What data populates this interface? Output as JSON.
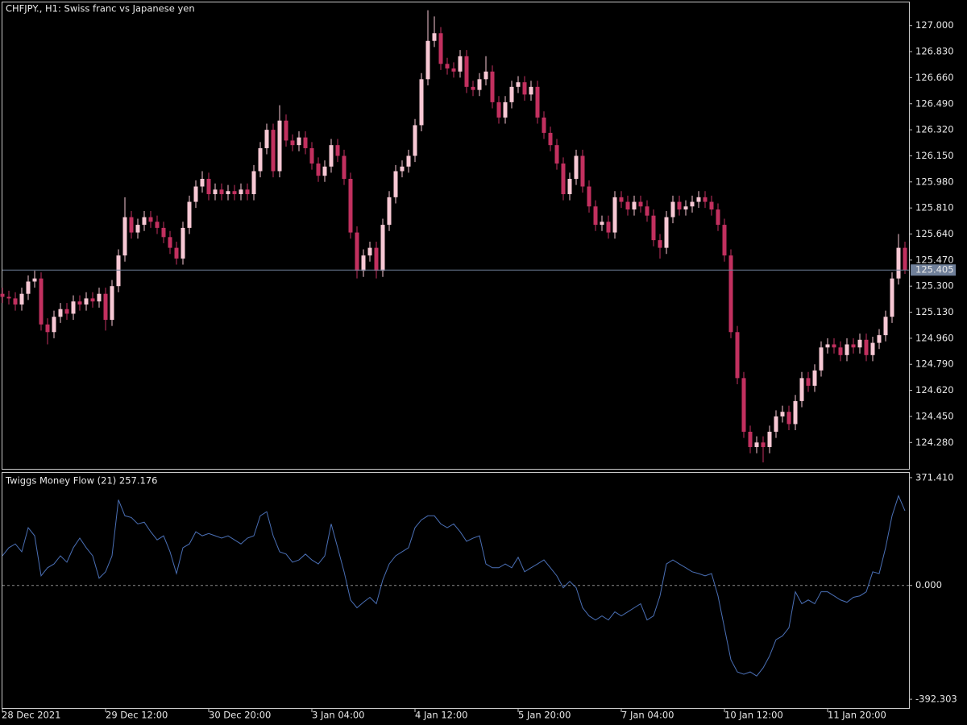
{
  "chart_data": [
    {
      "type": "candlestick",
      "title": "CHFJPY., H1:  Swiss franc vs Japanese yen",
      "categories": [
        "28 Dec 2021",
        null,
        null,
        null,
        null,
        null,
        null,
        null,
        null,
        null,
        null,
        null,
        null,
        null,
        null,
        null,
        "29 Dec 12:00",
        null,
        null,
        null,
        null,
        null,
        null,
        null,
        null,
        null,
        null,
        null,
        null,
        null,
        null,
        null,
        "30 Dec 20:00",
        null,
        null,
        null,
        null,
        null,
        null,
        null,
        null,
        null,
        null,
        null,
        null,
        null,
        null,
        null,
        "3 Jan 04:00",
        null,
        null,
        null,
        null,
        null,
        null,
        null,
        null,
        null,
        null,
        null,
        null,
        null,
        null,
        null,
        "4 Jan 12:00",
        null,
        null,
        null,
        null,
        null,
        null,
        null,
        null,
        null,
        null,
        null,
        null,
        null,
        null,
        null,
        "5 Jan 20:00",
        null,
        null,
        null,
        null,
        null,
        null,
        null,
        null,
        null,
        null,
        null,
        null,
        null,
        null,
        null,
        "7 Jan 04:00",
        null,
        null,
        null,
        null,
        null,
        null,
        null,
        null,
        null,
        null,
        null,
        null,
        null,
        null,
        null,
        "10 Jan 12:00",
        null,
        null,
        null,
        null,
        null,
        null,
        null,
        null,
        null,
        null,
        null,
        null,
        null,
        null,
        null,
        "11 Jan 20:00",
        null,
        null,
        null,
        null,
        null,
        null,
        null,
        null,
        null,
        null,
        null,
        null
      ],
      "ohlc": [
        [
          125.25,
          125.29,
          125.19,
          125.23
        ],
        [
          125.23,
          125.27,
          125.18,
          125.22
        ],
        [
          125.22,
          125.26,
          125.14,
          125.18
        ],
        [
          125.18,
          125.29,
          125.14,
          125.25
        ],
        [
          125.25,
          125.37,
          125.21,
          125.33
        ],
        [
          125.33,
          125.4,
          125.29,
          125.35
        ],
        [
          125.35,
          125.39,
          125.01,
          125.05
        ],
        [
          125.05,
          125.09,
          124.92,
          125.0
        ],
        [
          125.0,
          125.14,
          124.96,
          125.1
        ],
        [
          125.1,
          125.19,
          125.06,
          125.15
        ],
        [
          125.15,
          125.19,
          125.08,
          125.12
        ],
        [
          125.12,
          125.24,
          125.08,
          125.2
        ],
        [
          125.2,
          125.24,
          125.14,
          125.18
        ],
        [
          125.18,
          125.26,
          125.14,
          125.22
        ],
        [
          125.22,
          125.26,
          125.16,
          125.2
        ],
        [
          125.2,
          125.29,
          125.16,
          125.25
        ],
        [
          125.25,
          125.29,
          125.01,
          125.08
        ],
        [
          125.08,
          125.34,
          125.04,
          125.3
        ],
        [
          125.3,
          125.54,
          125.26,
          125.5
        ],
        [
          125.5,
          125.88,
          125.46,
          125.75
        ],
        [
          125.75,
          125.79,
          125.61,
          125.65
        ],
        [
          125.65,
          125.74,
          125.61,
          125.7
        ],
        [
          125.7,
          125.79,
          125.66,
          125.75
        ],
        [
          125.75,
          125.79,
          125.68,
          125.72
        ],
        [
          125.72,
          125.76,
          125.64,
          125.68
        ],
        [
          125.68,
          125.72,
          125.58,
          125.62
        ],
        [
          125.62,
          125.66,
          125.51,
          125.55
        ],
        [
          125.55,
          125.59,
          125.44,
          125.48
        ],
        [
          125.48,
          125.72,
          125.44,
          125.68
        ],
        [
          125.68,
          125.89,
          125.64,
          125.85
        ],
        [
          125.85,
          125.99,
          125.81,
          125.95
        ],
        [
          125.95,
          126.05,
          125.91,
          126.0
        ],
        [
          126.0,
          126.04,
          125.86,
          125.9
        ],
        [
          125.9,
          125.97,
          125.86,
          125.93
        ],
        [
          125.93,
          125.97,
          125.86,
          125.9
        ],
        [
          125.9,
          125.96,
          125.86,
          125.92
        ],
        [
          125.92,
          125.96,
          125.86,
          125.9
        ],
        [
          125.9,
          125.97,
          125.86,
          125.93
        ],
        [
          125.93,
          125.97,
          125.86,
          125.9
        ],
        [
          125.9,
          126.09,
          125.86,
          126.05
        ],
        [
          126.05,
          126.24,
          126.01,
          126.2
        ],
        [
          126.2,
          126.36,
          126.16,
          126.32
        ],
        [
          126.32,
          126.36,
          126.01,
          126.05
        ],
        [
          126.05,
          126.48,
          126.01,
          126.38
        ],
        [
          126.38,
          126.42,
          126.21,
          126.25
        ],
        [
          126.25,
          126.29,
          126.18,
          126.22
        ],
        [
          126.22,
          126.31,
          126.18,
          126.27
        ],
        [
          126.27,
          126.31,
          126.16,
          126.2
        ],
        [
          126.2,
          126.24,
          126.06,
          126.1
        ],
        [
          126.1,
          126.14,
          125.98,
          126.02
        ],
        [
          126.02,
          126.12,
          125.98,
          126.08
        ],
        [
          126.08,
          126.26,
          126.04,
          126.22
        ],
        [
          126.22,
          126.26,
          126.11,
          126.15
        ],
        [
          126.15,
          126.19,
          125.96,
          126.0
        ],
        [
          126.0,
          126.04,
          125.61,
          125.65
        ],
        [
          125.65,
          125.69,
          125.35,
          125.4
        ],
        [
          125.4,
          125.54,
          125.36,
          125.5
        ],
        [
          125.5,
          125.59,
          125.46,
          125.55
        ],
        [
          125.55,
          125.59,
          125.35,
          125.4
        ],
        [
          125.4,
          125.74,
          125.36,
          125.7
        ],
        [
          125.7,
          125.92,
          125.66,
          125.88
        ],
        [
          125.88,
          126.09,
          125.84,
          126.05
        ],
        [
          126.05,
          126.12,
          126.01,
          126.08
        ],
        [
          126.08,
          126.19,
          126.04,
          126.15
        ],
        [
          126.15,
          126.39,
          126.11,
          126.35
        ],
        [
          126.35,
          126.69,
          126.31,
          126.65
        ],
        [
          126.65,
          127.1,
          126.61,
          126.9
        ],
        [
          126.9,
          127.06,
          126.86,
          126.95
        ],
        [
          126.95,
          126.99,
          126.71,
          126.75
        ],
        [
          126.75,
          126.79,
          126.68,
          126.72
        ],
        [
          126.72,
          126.76,
          126.66,
          126.7
        ],
        [
          126.7,
          126.84,
          126.66,
          126.8
        ],
        [
          126.8,
          126.84,
          126.56,
          126.6
        ],
        [
          126.6,
          126.64,
          126.54,
          126.58
        ],
        [
          126.58,
          126.69,
          126.54,
          126.65
        ],
        [
          126.65,
          126.8,
          126.61,
          126.7
        ],
        [
          126.7,
          126.74,
          126.46,
          126.5
        ],
        [
          126.5,
          126.54,
          126.36,
          126.4
        ],
        [
          126.4,
          126.54,
          126.36,
          126.5
        ],
        [
          126.5,
          126.64,
          126.46,
          126.6
        ],
        [
          126.6,
          126.67,
          126.56,
          126.63
        ],
        [
          126.63,
          126.67,
          126.51,
          126.55
        ],
        [
          126.55,
          126.64,
          126.51,
          126.6
        ],
        [
          126.6,
          126.64,
          126.36,
          126.4
        ],
        [
          126.4,
          126.44,
          126.26,
          126.3
        ],
        [
          126.3,
          126.34,
          126.18,
          126.22
        ],
        [
          126.22,
          126.26,
          126.06,
          126.1
        ],
        [
          126.1,
          126.14,
          125.86,
          125.9
        ],
        [
          125.9,
          126.04,
          125.86,
          126.0
        ],
        [
          126.0,
          126.19,
          125.96,
          126.15
        ],
        [
          126.15,
          126.19,
          125.91,
          125.95
        ],
        [
          125.95,
          125.99,
          125.78,
          125.82
        ],
        [
          125.82,
          125.86,
          125.66,
          125.7
        ],
        [
          125.7,
          125.76,
          125.66,
          125.72
        ],
        [
          125.72,
          125.76,
          125.61,
          125.65
        ],
        [
          125.65,
          125.92,
          125.61,
          125.88
        ],
        [
          125.88,
          125.92,
          125.81,
          125.85
        ],
        [
          125.85,
          125.89,
          125.76,
          125.8
        ],
        [
          125.8,
          125.89,
          125.76,
          125.85
        ],
        [
          125.85,
          125.89,
          125.78,
          125.82
        ],
        [
          125.82,
          125.86,
          125.72,
          125.76
        ],
        [
          125.76,
          125.8,
          125.56,
          125.6
        ],
        [
          125.6,
          125.64,
          125.48,
          125.55
        ],
        [
          125.55,
          125.79,
          125.51,
          125.75
        ],
        [
          125.75,
          125.89,
          125.71,
          125.85
        ],
        [
          125.85,
          125.89,
          125.76,
          125.8
        ],
        [
          125.8,
          125.86,
          125.76,
          125.82
        ],
        [
          125.82,
          125.89,
          125.78,
          125.85
        ],
        [
          125.85,
          125.92,
          125.81,
          125.88
        ],
        [
          125.88,
          125.92,
          125.81,
          125.85
        ],
        [
          125.85,
          125.89,
          125.76,
          125.8
        ],
        [
          125.8,
          125.84,
          125.66,
          125.7
        ],
        [
          125.7,
          125.74,
          125.46,
          125.5
        ],
        [
          125.5,
          125.54,
          124.96,
          125.0
        ],
        [
          125.0,
          125.04,
          124.66,
          124.7
        ],
        [
          124.7,
          124.74,
          124.31,
          124.35
        ],
        [
          124.35,
          124.39,
          124.21,
          124.25
        ],
        [
          124.25,
          124.32,
          124.21,
          124.28
        ],
        [
          124.28,
          124.32,
          124.15,
          124.25
        ],
        [
          124.25,
          124.39,
          124.21,
          124.35
        ],
        [
          124.35,
          124.49,
          124.31,
          124.45
        ],
        [
          124.45,
          124.52,
          124.41,
          124.48
        ],
        [
          124.48,
          124.52,
          124.36,
          124.4
        ],
        [
          124.4,
          124.59,
          124.36,
          124.55
        ],
        [
          124.55,
          124.74,
          124.51,
          124.7
        ],
        [
          124.7,
          124.74,
          124.61,
          124.65
        ],
        [
          124.65,
          124.79,
          124.61,
          124.75
        ],
        [
          124.75,
          124.94,
          124.71,
          124.9
        ],
        [
          124.9,
          124.96,
          124.86,
          124.92
        ],
        [
          124.92,
          124.96,
          124.86,
          124.9
        ],
        [
          124.9,
          124.94,
          124.81,
          124.85
        ],
        [
          124.85,
          124.96,
          124.81,
          124.92
        ],
        [
          124.92,
          124.96,
          124.86,
          124.9
        ],
        [
          124.9,
          124.99,
          124.86,
          124.95
        ],
        [
          124.95,
          124.99,
          124.81,
          124.85
        ],
        [
          124.85,
          124.97,
          124.81,
          124.93
        ],
        [
          124.93,
          125.02,
          124.89,
          124.98
        ],
        [
          124.98,
          125.14,
          124.94,
          125.1
        ],
        [
          125.1,
          125.39,
          125.06,
          125.35
        ],
        [
          125.35,
          125.64,
          125.31,
          125.55
        ],
        [
          125.55,
          125.59,
          125.38,
          125.405
        ]
      ],
      "up_color": "#f7c8d4",
      "down_color": "#c2305f",
      "ylim": [
        124.108,
        127.151
      ],
      "yticks": [
        {
          "value": 124.28,
          "label": "124.280"
        },
        {
          "value": 124.45,
          "label": "124.450"
        },
        {
          "value": 124.62,
          "label": "124.620"
        },
        {
          "value": 124.79,
          "label": "124.790"
        },
        {
          "value": 124.96,
          "label": "124.960"
        },
        {
          "value": 125.13,
          "label": "125.130"
        },
        {
          "value": 125.3,
          "label": "125.300"
        },
        {
          "value": 125.47,
          "label": "125.470"
        },
        {
          "value": 125.64,
          "label": "125.640"
        },
        {
          "value": 125.81,
          "label": "125.810"
        },
        {
          "value": 125.98,
          "label": "125.980"
        },
        {
          "value": 126.15,
          "label": "126.150"
        },
        {
          "value": 126.32,
          "label": "126.320"
        },
        {
          "value": 126.49,
          "label": "126.490"
        },
        {
          "value": 126.66,
          "label": "126.660"
        },
        {
          "value": 126.83,
          "label": "126.830"
        },
        {
          "value": 127,
          "label": "127.000"
        }
      ],
      "current_price": 125.405,
      "current_price_color": "#6f7f99"
    },
    {
      "type": "line",
      "title": "Twiggs Money Flow (21) 257.176",
      "series": [
        {
          "color": "#4a6fb5",
          "values": [
            102,
            130,
            143,
            116,
            199,
            171,
            33,
            61,
            74,
            102,
            80,
            130,
            163,
            130,
            102,
            25,
            47,
            102,
            295,
            240,
            234,
            212,
            218,
            185,
            157,
            171,
            116,
            41,
            130,
            143,
            185,
            171,
            179,
            171,
            163,
            171,
            157,
            143,
            163,
            171,
            240,
            254,
            171,
            116,
            108,
            80,
            88,
            108,
            88,
            74,
            102,
            212,
            130,
            47,
            -50,
            -77,
            -58,
            -41,
            -63,
            19,
            74,
            102,
            116,
            130,
            199,
            226,
            240,
            240,
            212,
            199,
            212,
            185,
            152,
            163,
            171,
            74,
            61,
            61,
            74,
            61,
            97,
            47,
            61,
            74,
            88,
            61,
            33,
            -8,
            14,
            -8,
            -77,
            -105,
            -119,
            -105,
            -119,
            -91,
            -105,
            -91,
            -77,
            -63,
            -119,
            -105,
            -36,
            74,
            88,
            74,
            61,
            47,
            41,
            33,
            41,
            -36,
            -146,
            -256,
            -298,
            -306,
            -298,
            -312,
            -284,
            -243,
            -187,
            -174,
            -146,
            -22,
            -63,
            -50,
            -63,
            -22,
            -22,
            -36,
            -50,
            -58,
            -41,
            -36,
            -22,
            47,
            41,
            130,
            240,
            309,
            257.176
          ]
        }
      ],
      "ylim": [
        -422.6,
        387.9
      ],
      "yticks": [
        {
          "value": 371.41,
          "label": "371.410"
        },
        {
          "value": 0,
          "label": "0.000"
        },
        -392.303
      ],
      "zero_line": true
    }
  ]
}
